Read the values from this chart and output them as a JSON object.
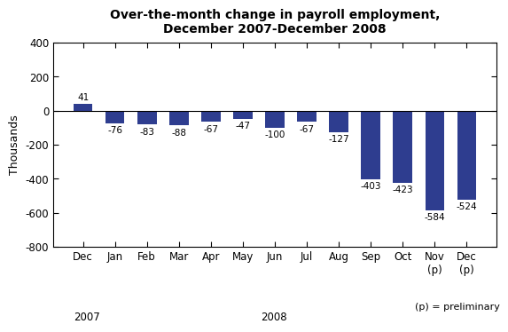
{
  "categories": [
    "Dec",
    "Jan",
    "Feb",
    "Mar",
    "Apr",
    "May",
    "Jun",
    "Jul",
    "Aug",
    "Sep",
    "Oct",
    "Nov\n(p)",
    "Dec\n(p)"
  ],
  "values": [
    41,
    -76,
    -83,
    -88,
    -67,
    -47,
    -100,
    -67,
    -127,
    -403,
    -423,
    -584,
    -524
  ],
  "bar_color": "#2E3D8F",
  "title_line1": "Over-the-month change in payroll employment,",
  "title_line2": "December 2007-December 2008",
  "ylabel": "Thousands",
  "ylim": [
    -800,
    400
  ],
  "yticks": [
    -800,
    -600,
    -400,
    -200,
    0,
    200,
    400
  ],
  "footnote": "(p) = preliminary",
  "background_color": "#ffffff",
  "plot_background": "#ffffff",
  "year2007_label": "2007",
  "year2008_label": "2008"
}
